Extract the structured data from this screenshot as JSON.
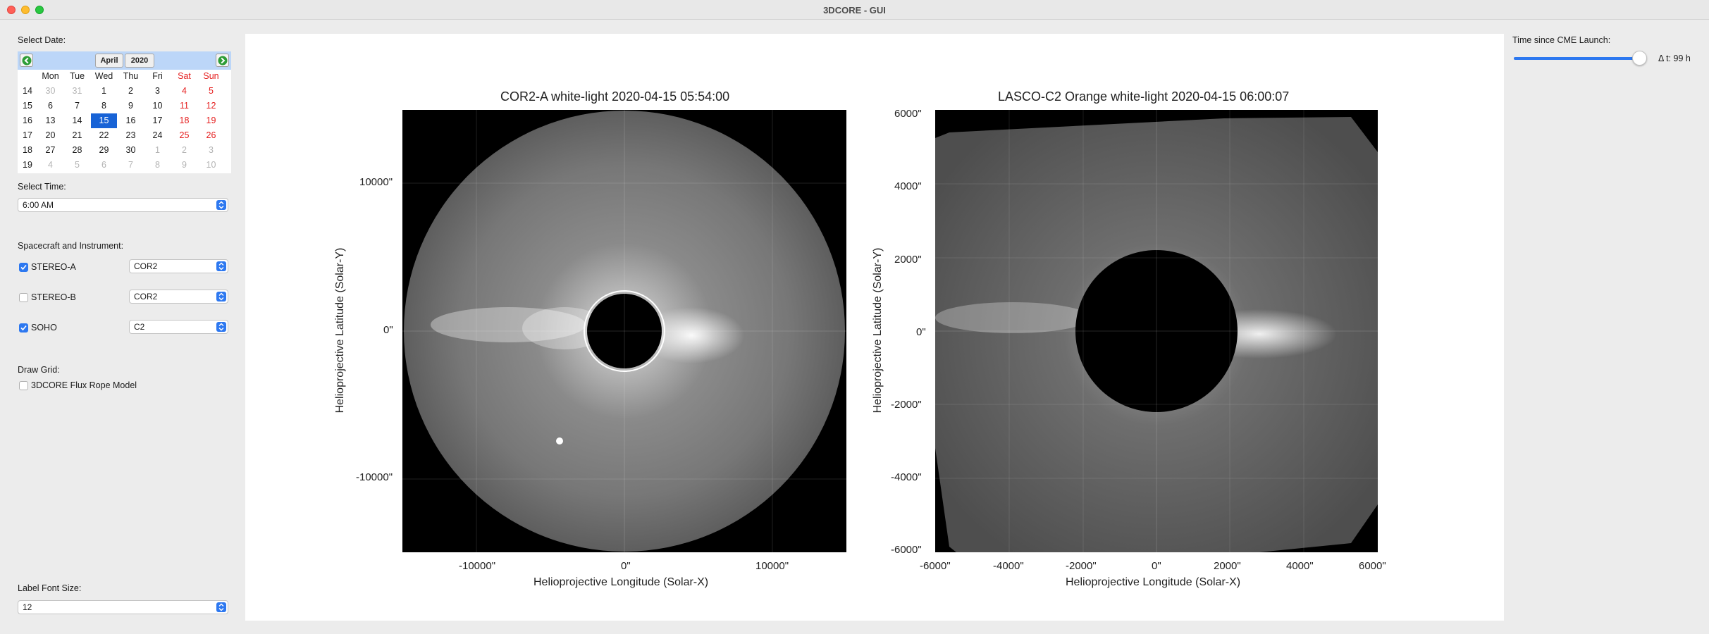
{
  "window": {
    "title": "3DCORE - GUI"
  },
  "sidebar": {
    "select_date_label": "Select Date:",
    "calendar": {
      "month": "April",
      "year": "2020",
      "weekdays": [
        "Mon",
        "Tue",
        "Wed",
        "Thu",
        "Fri",
        "Sat",
        "Sun"
      ],
      "week_numbers": [
        "14",
        "15",
        "16",
        "17",
        "18",
        "19"
      ],
      "rows": [
        [
          "30",
          "31",
          "1",
          "2",
          "3",
          "4",
          "5"
        ],
        [
          "6",
          "7",
          "8",
          "9",
          "10",
          "11",
          "12"
        ],
        [
          "13",
          "14",
          "15",
          "16",
          "17",
          "18",
          "19"
        ],
        [
          "20",
          "21",
          "22",
          "23",
          "24",
          "25",
          "26"
        ],
        [
          "27",
          "28",
          "29",
          "30",
          "1",
          "2",
          "3"
        ],
        [
          "4",
          "5",
          "6",
          "7",
          "8",
          "9",
          "10"
        ]
      ],
      "selected_day": "15"
    },
    "select_time_label": "Select Time:",
    "time_value": "6:00 AM",
    "spacecraft_label": "Spacecraft and Instrument:",
    "spacecraft": [
      {
        "name": "STEREO-A",
        "checked": true,
        "instrument": "COR2"
      },
      {
        "name": "STEREO-B",
        "checked": false,
        "instrument": "COR2"
      },
      {
        "name": "SOHO",
        "checked": true,
        "instrument": "C2"
      }
    ],
    "draw_grid_label": "Draw Grid:",
    "grid_option": {
      "name": "3DCORE Flux Rope Model",
      "checked": false
    },
    "label_font_size_label": "Label Font Size:",
    "label_font_size_value": "12"
  },
  "plots": [
    {
      "title": "COR2-A white-light 2020-04-15 05:54:00",
      "xlabel": "Helioprojective Longitude (Solar-X)",
      "ylabel": "Helioprojective Latitude (Solar-Y)",
      "xticks": [
        "-10000\"",
        "0\"",
        "10000\""
      ],
      "yticks": [
        "10000\"",
        "0\"",
        "-10000\""
      ]
    },
    {
      "title": "LASCO-C2 Orange white-light 2020-04-15 06:00:07",
      "xlabel": "Helioprojective Longitude (Solar-X)",
      "ylabel": "Helioprojective Latitude (Solar-Y)",
      "xticks": [
        "-6000\"",
        "-4000\"",
        "-2000\"",
        "0\"",
        "2000\"",
        "4000\"",
        "6000\""
      ],
      "yticks": [
        "6000\"",
        "4000\"",
        "2000\"",
        "0\"",
        "-2000\"",
        "-4000\"",
        "-6000\""
      ]
    }
  ],
  "right_panel": {
    "time_label": "Time since CME Launch:",
    "delta_label": "Δ t: 99 h",
    "slider_fraction": 0.98
  }
}
